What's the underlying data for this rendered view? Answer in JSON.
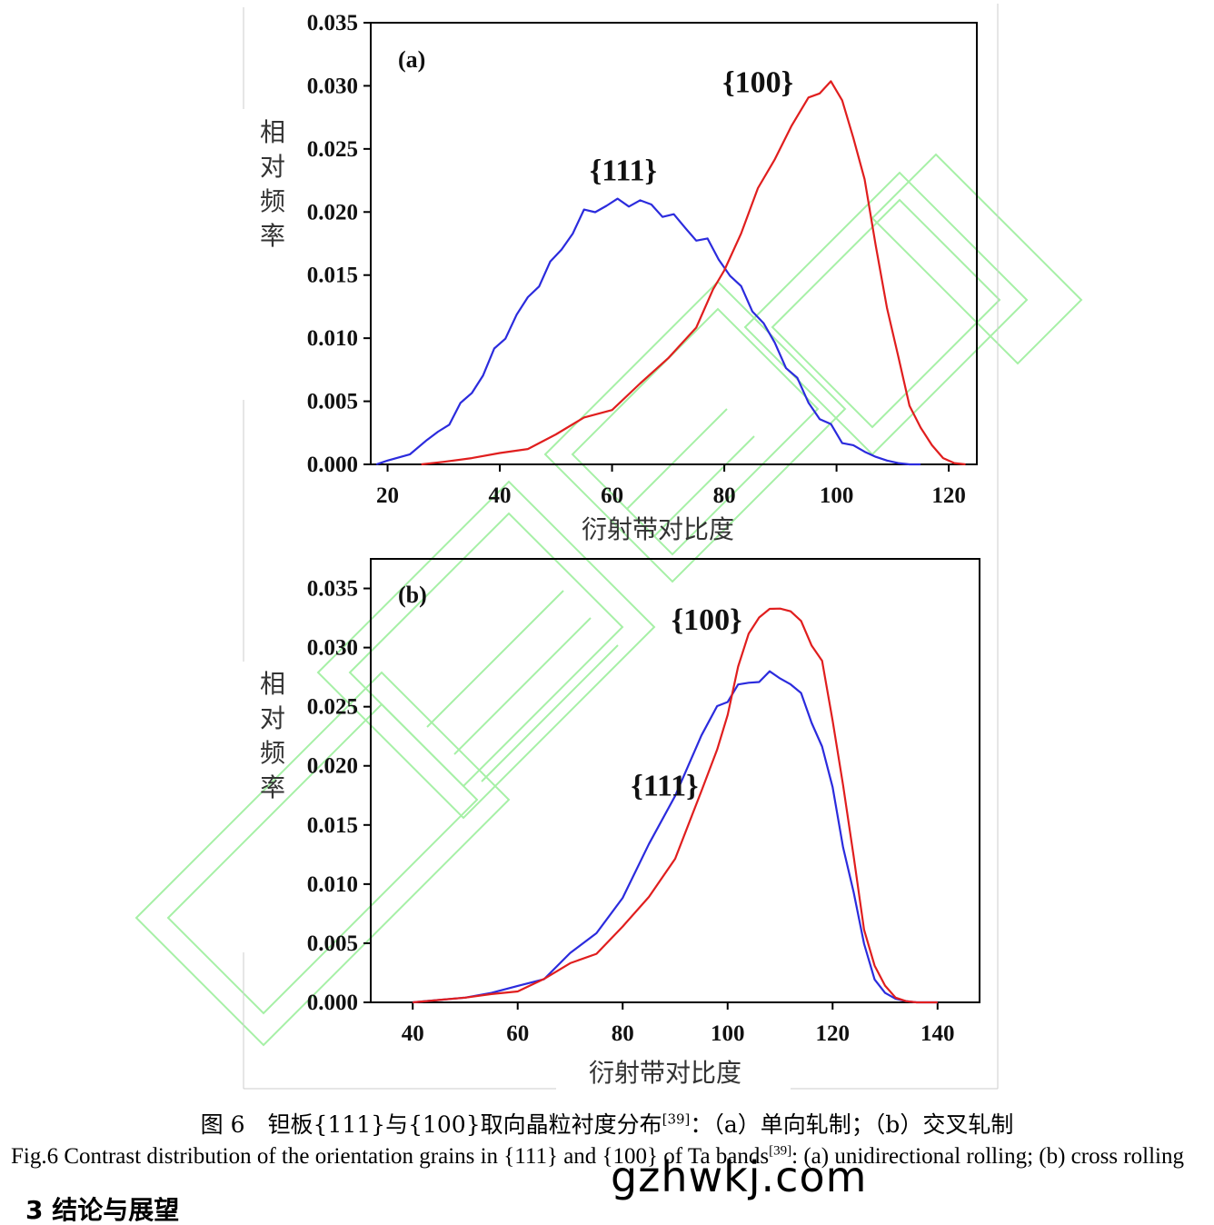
{
  "caption": {
    "cn_fig": "图 6",
    "cn_text": "钽板{111}与{100}取向晶粒衬度分布",
    "cn_ref": "[39]",
    "cn_tail": "：（a）单向轧制；（b）交叉轧制",
    "en_text": "Fig.6    Contrast distribution of the orientation grains in {111} and {100} of Ta bands",
    "en_ref": "[39]",
    "en_tail": ": (a) unidirectional rolling; (b) cross rolling"
  },
  "watermark": "gzhwkj.com",
  "page_fragment": "3  结论与展望",
  "colors": {
    "series_111": "#2b2bdd",
    "series_100": "#e01e1e",
    "watermark": "#a6f0a6"
  },
  "chart_data": [
    {
      "type": "line",
      "panel": "(a)",
      "xlabel": "衍射带对比度",
      "ylabel": "相对频率",
      "xlim": [
        17,
        125
      ],
      "ylim": [
        0,
        0.035
      ],
      "xticks": [
        20,
        40,
        60,
        80,
        100,
        120
      ],
      "yticks": [
        "0.000",
        "0.005",
        "0.010",
        "0.015",
        "0.020",
        "0.025",
        "0.030",
        "0.035"
      ],
      "series": [
        {
          "name": "{111}",
          "color": "#2b2bdd",
          "label_at": [
            62,
            0.0225
          ],
          "x": [
            18,
            20,
            24,
            27,
            29,
            31,
            33,
            35,
            37,
            39,
            41,
            43,
            45,
            47,
            49,
            51,
            53,
            55,
            57,
            59,
            61,
            63,
            65,
            67,
            69,
            71,
            73,
            75,
            77,
            79,
            81,
            83,
            85,
            87,
            89,
            91,
            93,
            95,
            97,
            99,
            101,
            103,
            105,
            107,
            109,
            111,
            113,
            115
          ],
          "y": [
            0,
            0.0003,
            0.0012,
            0.0017,
            0.0025,
            0.0035,
            0.0045,
            0.0058,
            0.0072,
            0.0088,
            0.0103,
            0.0118,
            0.013,
            0.0145,
            0.0158,
            0.017,
            0.0186,
            0.0198,
            0.0202,
            0.0206,
            0.0207,
            0.0208,
            0.0208,
            0.0204,
            0.02,
            0.0195,
            0.0188,
            0.018,
            0.0175,
            0.0165,
            0.015,
            0.0138,
            0.0125,
            0.011,
            0.0095,
            0.008,
            0.0065,
            0.005,
            0.0038,
            0.0028,
            0.002,
            0.0015,
            0.001,
            0.0006,
            0.0003,
            0.0001,
            0.0,
            0.0
          ]
        },
        {
          "name": "{100}",
          "color": "#e01e1e",
          "label_at": [
            86,
            0.0295
          ],
          "x": [
            26,
            30,
            35,
            40,
            45,
            50,
            55,
            60,
            65,
            70,
            75,
            78,
            80,
            83,
            86,
            89,
            92,
            95,
            97,
            99,
            101,
            103,
            105,
            107,
            109,
            111,
            113,
            115,
            117,
            119,
            121,
            123
          ],
          "y": [
            0,
            0.0002,
            0.0005,
            0.0009,
            0.0015,
            0.0024,
            0.0034,
            0.0047,
            0.0062,
            0.0083,
            0.0112,
            0.0135,
            0.0155,
            0.0185,
            0.0215,
            0.0245,
            0.0268,
            0.0288,
            0.0298,
            0.0301,
            0.0288,
            0.0262,
            0.0222,
            0.0175,
            0.0125,
            0.0082,
            0.005,
            0.0028,
            0.0013,
            0.0005,
            0.0001,
            0.0
          ]
        }
      ]
    },
    {
      "type": "line",
      "panel": "(b)",
      "xlabel": "衍射带对比度",
      "ylabel": "相对频率",
      "xlim": [
        32,
        148
      ],
      "ylim": [
        0,
        0.0375
      ],
      "xticks": [
        40,
        60,
        80,
        100,
        120,
        140
      ],
      "yticks": [
        "0.000",
        "0.005",
        "0.010",
        "0.015",
        "0.020",
        "0.025",
        "0.030",
        "0.035"
      ],
      "series": [
        {
          "name": "{111}",
          "color": "#2b2bdd",
          "label_at": [
            88,
            0.0175
          ],
          "x": [
            40,
            45,
            50,
            55,
            60,
            65,
            70,
            75,
            80,
            85,
            90,
            95,
            98,
            100,
            102,
            104,
            106,
            108,
            110,
            112,
            114,
            116,
            118,
            120,
            122,
            124,
            126,
            128,
            130,
            132,
            134,
            136,
            140
          ],
          "y": [
            0,
            0.0002,
            0.0004,
            0.0008,
            0.0013,
            0.0023,
            0.0038,
            0.006,
            0.009,
            0.013,
            0.0178,
            0.0225,
            0.0248,
            0.0258,
            0.0266,
            0.027,
            0.0274,
            0.0276,
            0.0276,
            0.027,
            0.0258,
            0.024,
            0.0215,
            0.018,
            0.0135,
            0.009,
            0.005,
            0.0022,
            0.0008,
            0.0003,
            0.0001,
            0.0,
            0.0
          ]
        },
        {
          "name": "{100}",
          "color": "#e01e1e",
          "label_at": [
            96,
            0.0315
          ],
          "x": [
            40,
            45,
            50,
            55,
            60,
            65,
            70,
            75,
            80,
            85,
            90,
            95,
            98,
            100,
            102,
            104,
            106,
            108,
            110,
            112,
            114,
            116,
            118,
            120,
            122,
            124,
            126,
            128,
            130,
            132,
            134,
            136,
            140
          ],
          "y": [
            0,
            0.0002,
            0.0004,
            0.0007,
            0.0012,
            0.002,
            0.003,
            0.0045,
            0.0062,
            0.0088,
            0.0125,
            0.0175,
            0.0215,
            0.0245,
            0.028,
            0.0315,
            0.0325,
            0.033,
            0.0337,
            0.0328,
            0.0322,
            0.0305,
            0.0285,
            0.024,
            0.0185,
            0.012,
            0.0065,
            0.003,
            0.0012,
            0.0004,
            0.0001,
            0.0,
            0.0
          ]
        }
      ]
    }
  ]
}
